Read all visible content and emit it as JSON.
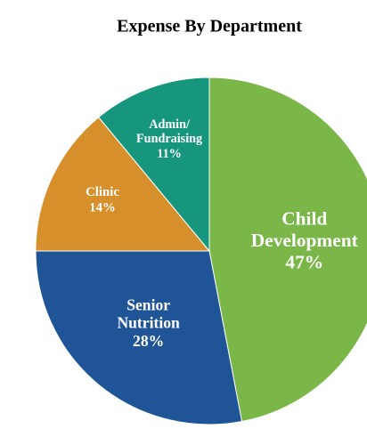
{
  "chart_data": {
    "type": "pie",
    "title": "Expense By Department",
    "categories": [
      "Child Development",
      "Senior Nutrition",
      "Clinic",
      "Admin/Fundraising"
    ],
    "values": [
      47,
      28,
      14,
      11
    ],
    "value_labels": [
      "47%",
      "28%",
      "14%",
      "11%"
    ],
    "colors": [
      "#7ab648",
      "#1f5496",
      "#d68f2a",
      "#17967e"
    ]
  }
}
